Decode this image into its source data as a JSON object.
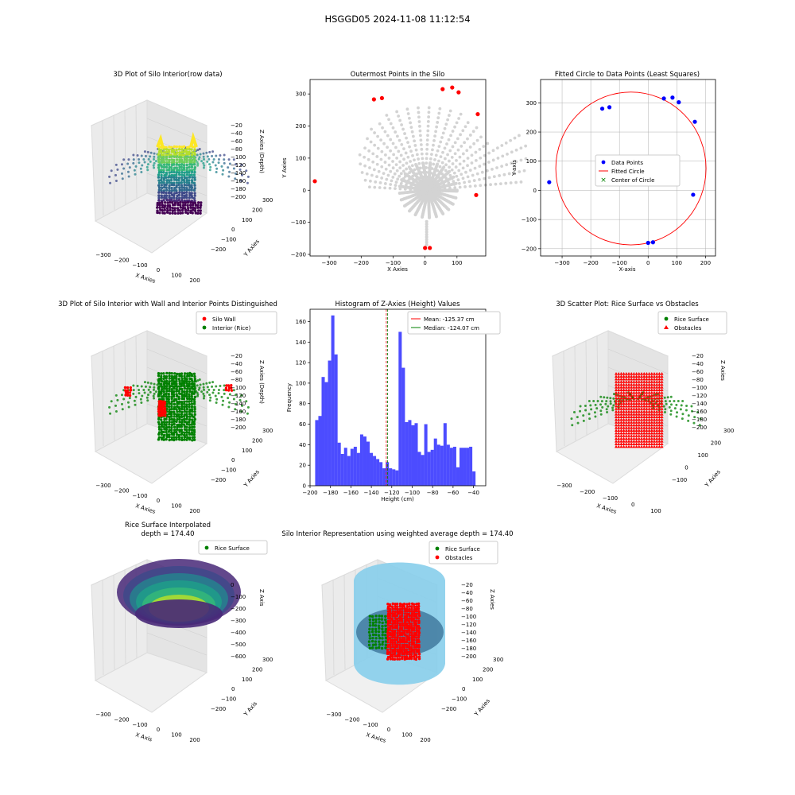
{
  "suptitle": "HSGGD05 2024-11-08 11:12:54",
  "panels": {
    "p1": {
      "title": "3D Plot of Silo Interior(row data)",
      "xlabel": "X Axies",
      "ylabel": "Y Axies",
      "zlabel": "Z Axies (Depth)",
      "xticks": [
        "−300",
        "−200",
        "−100",
        "0",
        "100",
        "200"
      ],
      "yticks": [
        "−200",
        "−100",
        "0",
        "100",
        "200",
        "300"
      ],
      "zticks": [
        "−20",
        "−40",
        "−60",
        "−80",
        "−100",
        "−120",
        "−140",
        "−160",
        "−180",
        "−200"
      ]
    },
    "p4": {
      "title": "3D Plot of Silo Interior with Wall and Interior Points Distinguished",
      "xlabel": "X Axies",
      "ylabel": "Y Axies",
      "zlabel": "Z Axies (Depth)",
      "legend": [
        "Silo Wall",
        "Interior (Rice)"
      ],
      "xticks": [
        "−300",
        "−200",
        "−100",
        "0",
        "100",
        "200"
      ],
      "yticks": [
        "−200",
        "−100",
        "0",
        "100",
        "200",
        "300"
      ],
      "zticks": [
        "−20",
        "−40",
        "−60",
        "−80",
        "−100",
        "−120",
        "−140",
        "−160",
        "−180",
        "−200"
      ]
    },
    "p6": {
      "title": "3D Scatter Plot: Rice Surface vs Obstacles",
      "xlabel": "X Axies",
      "ylabel": "Y Axies",
      "zlabel": "Z Axies",
      "legend": [
        "Rice Surface",
        "Obstacles"
      ],
      "xticks": [
        "−300",
        "−200",
        "−100",
        "0",
        "100"
      ],
      "yticks": [
        "−100",
        "0",
        "100",
        "200",
        "300"
      ],
      "zticks": [
        "−20",
        "−40",
        "−60",
        "−80",
        "−100",
        "−120",
        "−140",
        "−160",
        "−180",
        "−200"
      ]
    },
    "p7": {
      "title": "Rice Surface Interpolated",
      "subtitle": "depth = 174.40",
      "xlabel": "X Axis",
      "ylabel": "Y Axis",
      "zlabel": "Z Axis",
      "legend": [
        "Rice Surface"
      ],
      "xticks": [
        "−300",
        "−200",
        "−100",
        "0",
        "100",
        "200"
      ],
      "yticks": [
        "−200",
        "−100",
        "0",
        "100",
        "200",
        "300"
      ],
      "zticks": [
        "0",
        "−100",
        "−200",
        "−300",
        "−400",
        "−500",
        "−600"
      ]
    },
    "p8": {
      "title": "Silo Interior Representation using weighted average depth = 174.40",
      "xlabel": "X Axies",
      "ylabel": "Y Axies",
      "zlabel": "Z Axies",
      "legend": [
        "Rice Surface",
        "Obstacles"
      ],
      "xticks": [
        "−300",
        "−200",
        "−100",
        "0",
        "100",
        "200"
      ],
      "yticks": [
        "−200",
        "−100",
        "0",
        "100",
        "200",
        "300"
      ],
      "zticks": [
        "−20",
        "−40",
        "−60",
        "−80",
        "−100",
        "−120",
        "−140",
        "−160",
        "−180",
        "−200"
      ]
    }
  },
  "colors": {
    "wall": "#ff0000",
    "rice": "#008000",
    "grey": "#d3d3d3",
    "blue": "#0000ff",
    "hist": "#0000ff",
    "silo": "#87ceeb"
  },
  "chart_data": [
    {
      "type": "scatter",
      "title": "Outermost Points in the Silo",
      "xlabel": "X Axies",
      "ylabel": "Y Axies",
      "xlim": [
        -360,
        190
      ],
      "ylim": [
        -205,
        345
      ],
      "xticks": [
        -300,
        -200,
        -100,
        0,
        100
      ],
      "yticks": [
        -200,
        -100,
        0,
        100,
        200,
        300
      ],
      "outermost_points": [
        [
          -345,
          28
        ],
        [
          -160,
          283
        ],
        [
          -135,
          287
        ],
        [
          55,
          315
        ],
        [
          85,
          320
        ],
        [
          105,
          305
        ],
        [
          165,
          237
        ],
        [
          160,
          -15
        ],
        [
          0,
          -180
        ],
        [
          15,
          -180
        ]
      ]
    },
    {
      "type": "scatter",
      "title": "Fitted Circle to Data Points (Least Squares)",
      "xlabel": "X-axis",
      "ylabel": "Y-axis",
      "xlim": [
        -375,
        235
      ],
      "ylim": [
        -225,
        380
      ],
      "xticks": [
        -300,
        -200,
        -100,
        0,
        100,
        200
      ],
      "yticks": [
        -200,
        -100,
        0,
        100,
        200,
        300
      ],
      "legend": [
        "Data Points",
        "Fitted Circle",
        "Center of Circle"
      ],
      "data_points": [
        [
          -345,
          28
        ],
        [
          -160,
          280
        ],
        [
          -135,
          285
        ],
        [
          55,
          315
        ],
        [
          85,
          318
        ],
        [
          107,
          302
        ],
        [
          163,
          235
        ],
        [
          157,
          -15
        ],
        [
          0,
          -180
        ],
        [
          17,
          -178
        ]
      ],
      "circle": {
        "center": [
          -60,
          75
        ],
        "radius": 262
      }
    },
    {
      "type": "bar",
      "title": "Histogram of Z-Axies (Height) Values",
      "xlabel": "Height (cm)",
      "ylabel": "Frequency",
      "xlim": [
        -200,
        -28
      ],
      "ylim": [
        0,
        172
      ],
      "xticks": [
        -200,
        -180,
        -160,
        -140,
        -120,
        -100,
        -80,
        -60,
        -40
      ],
      "yticks": [
        0,
        20,
        40,
        60,
        80,
        100,
        120,
        140,
        160
      ],
      "bin_start": -195,
      "bin_width": 3.14,
      "values": [
        64,
        68,
        106,
        101,
        122,
        166,
        128,
        42,
        31,
        37,
        29,
        36,
        38,
        32,
        50,
        48,
        43,
        32,
        29,
        26,
        23,
        17,
        23,
        17,
        16,
        15,
        150,
        115,
        62,
        64,
        59,
        61,
        33,
        30,
        60,
        33,
        35,
        46,
        40,
        39,
        61,
        40,
        37,
        38,
        18,
        37,
        37,
        37,
        38,
        14
      ],
      "mean": -125.37,
      "median": -124.07,
      "legend": [
        "Mean: -125.37 cm",
        "Median: -124.07 cm"
      ]
    }
  ]
}
